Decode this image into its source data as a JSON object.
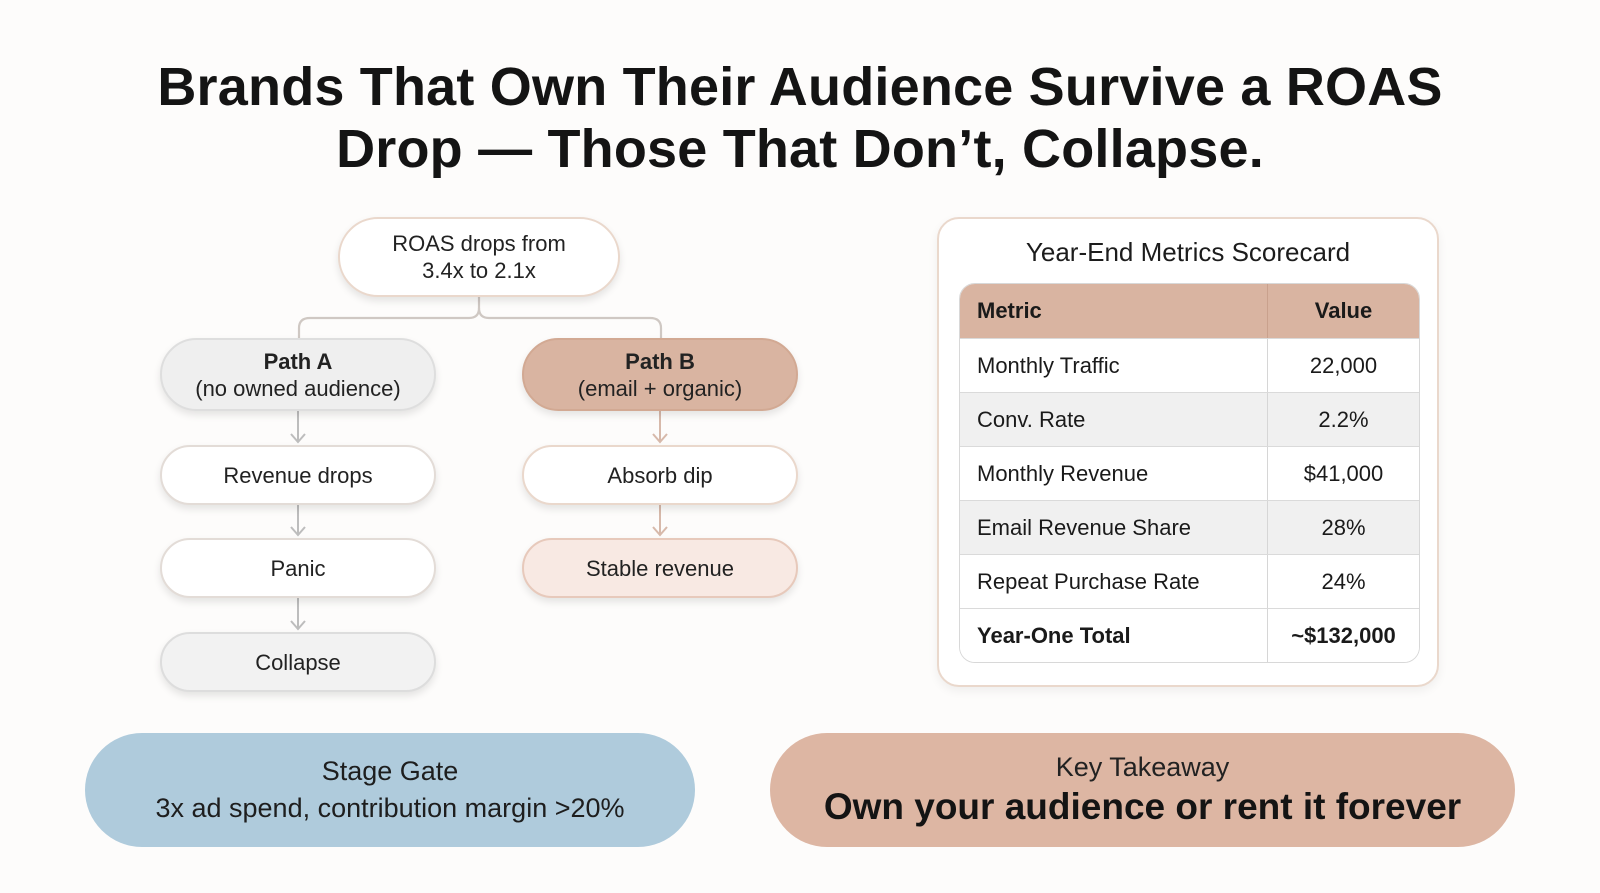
{
  "title": {
    "line1": "Brands That Own Their Audience Survive a ROAS",
    "line2": "Drop — Those That Don’t, Collapse."
  },
  "flow": {
    "root": {
      "line1": "ROAS drops from",
      "line2": "3.4x to 2.1x"
    },
    "path_a": {
      "title": "Path A",
      "subtitle": "(no owned audience)",
      "steps": [
        "Revenue drops",
        "Panic",
        "Collapse"
      ]
    },
    "path_b": {
      "title": "Path B",
      "subtitle": "(email + organic)",
      "steps": [
        "Absorb dip",
        "Stable revenue"
      ]
    }
  },
  "scorecard": {
    "title": "Year-End Metrics Scorecard",
    "headers": [
      "Metric",
      "Value"
    ],
    "rows": [
      {
        "metric": "Monthly Traffic",
        "value": "22,000"
      },
      {
        "metric": "Conv. Rate",
        "value": "2.2%"
      },
      {
        "metric": "Monthly Revenue",
        "value": "$41,000"
      },
      {
        "metric": "Email Revenue Share",
        "value": "28%"
      },
      {
        "metric": "Repeat Purchase Rate",
        "value": "24%"
      }
    ],
    "total": {
      "metric": "Year-One Total",
      "value": "~$132,000"
    }
  },
  "stage_gate": {
    "label": "Stage Gate",
    "text": "3x ad spend, contribution margin >20%"
  },
  "takeaway": {
    "label": "Key Takeaway",
    "text": "Own your audience or rent it forever"
  },
  "colors": {
    "path_b_fill": "#d9b4a1",
    "stage_gate_fill": "#afcbdc",
    "takeaway_fill": "#ddb6a3",
    "table_header_fill": "#d9b4a1"
  }
}
